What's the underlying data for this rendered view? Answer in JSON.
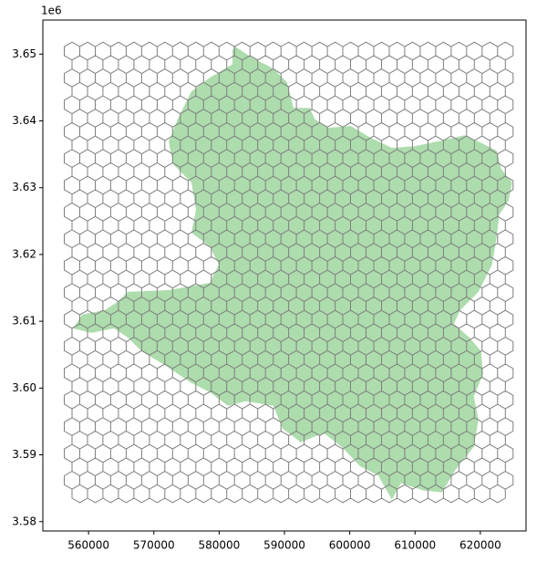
{
  "chart_data": {
    "type": "map",
    "offset_label": "1e6",
    "xlim": [
      553000,
      627000
    ],
    "ylim": [
      3578600,
      3655100
    ],
    "xticks": [
      560000,
      570000,
      580000,
      590000,
      600000,
      610000,
      620000
    ],
    "yticks": [
      {
        "value": 3580000,
        "label": "3.58"
      },
      {
        "value": 3590000,
        "label": "3.59"
      },
      {
        "value": 3600000,
        "label": "3.60"
      },
      {
        "value": 3610000,
        "label": "3.61"
      },
      {
        "value": 3620000,
        "label": "3.62"
      },
      {
        "value": 3630000,
        "label": "3.63"
      },
      {
        "value": 3640000,
        "label": "3.64"
      },
      {
        "value": 3650000,
        "label": "3.65"
      }
    ],
    "region": {
      "color": "#6abf69",
      "x": [
        582320,
        584830,
        588320,
        590410,
        591390,
        593900,
        594600,
        596690,
        600180,
        602970,
        606450,
        609940,
        613430,
        617610,
        619710,
        622500,
        623190,
        624870,
        624310,
        622910,
        622500,
        621800,
        619710,
        616920,
        615940,
        618310,
        620120,
        620400,
        619010,
        619710,
        619010,
        616220,
        614130,
        611340,
        607850,
        606450,
        604360,
        601570,
        598780,
        595990,
        592500,
        589710,
        588320,
        584130,
        581340,
        578550,
        575760,
        571580,
        568090,
        566000,
        563910,
        560420,
        557630,
        559020,
        562510,
        564600,
        566000,
        572280,
        578550,
        579950,
        578550,
        575760,
        576450,
        575760,
        572970,
        572280,
        573670,
        575760,
        578550,
        582040,
        582040
      ],
      "y": [
        3651230,
        3649590,
        3647820,
        3645770,
        3641950,
        3641950,
        3640320,
        3638960,
        3639230,
        3637590,
        3635950,
        3636220,
        3636910,
        3637860,
        3636910,
        3635540,
        3632810,
        3630770,
        3628040,
        3625990,
        3622580,
        3618490,
        3614400,
        3611670,
        3609630,
        3607580,
        3605530,
        3602120,
        3598710,
        3595300,
        3591210,
        3587800,
        3584390,
        3584660,
        3585750,
        3583300,
        3586940,
        3588300,
        3591210,
        3593260,
        3591890,
        3593940,
        3597350,
        3598030,
        3597350,
        3599390,
        3600760,
        3603490,
        3605530,
        3607580,
        3608940,
        3608260,
        3608940,
        3610990,
        3611670,
        3613040,
        3614400,
        3614670,
        3615760,
        3618490,
        3621220,
        3623270,
        3626680,
        3630770,
        3633500,
        3636910,
        3640320,
        3644410,
        3646460,
        3648500,
        3650550
      ]
    }
  }
}
